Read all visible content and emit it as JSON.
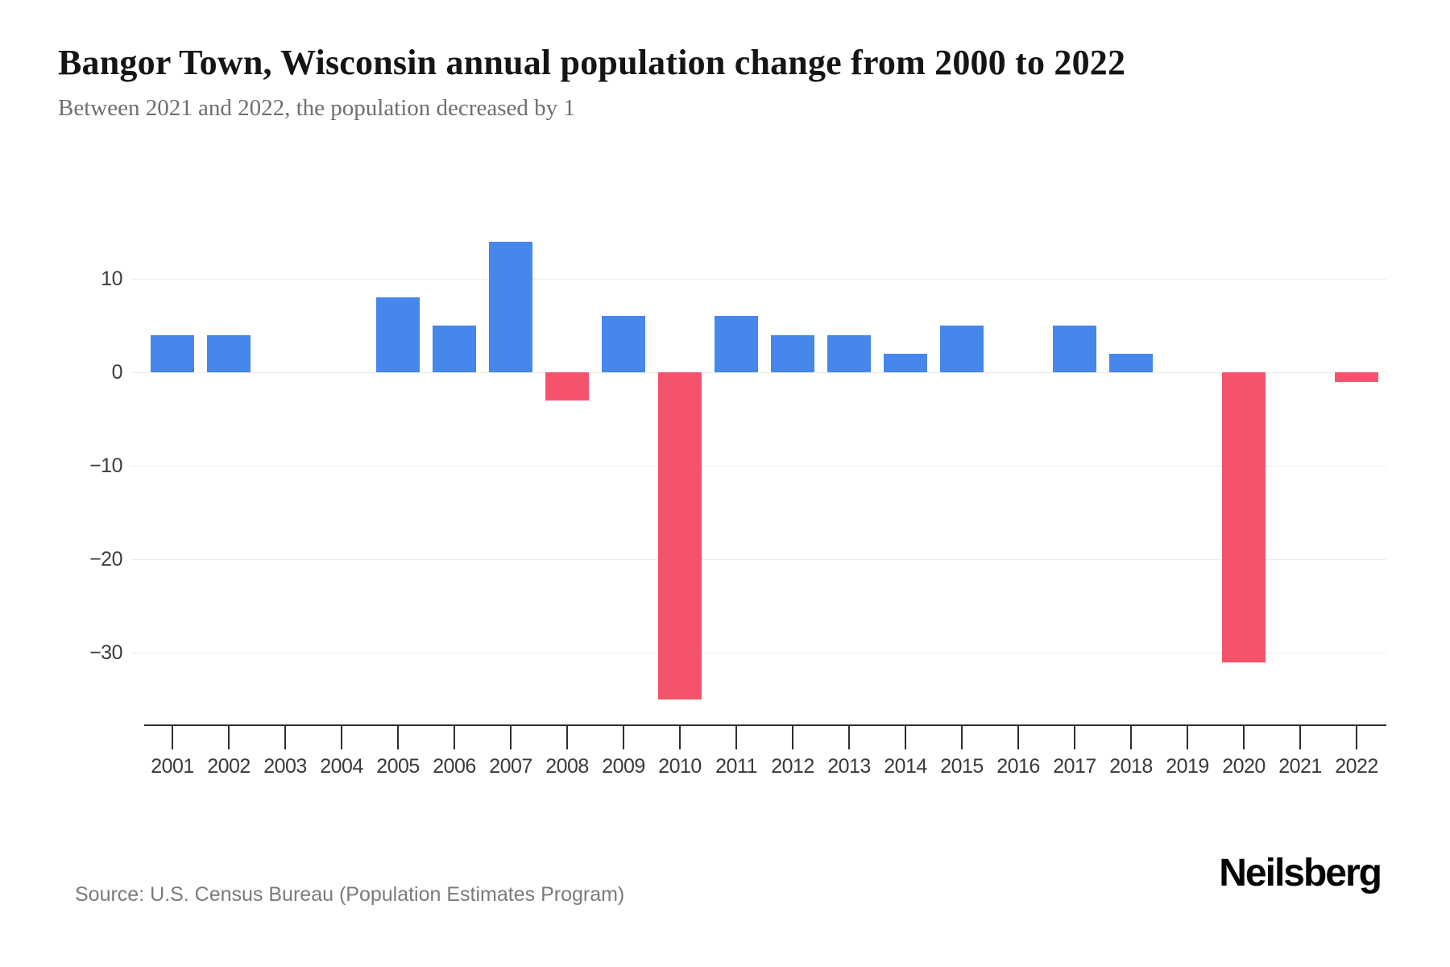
{
  "header": {
    "title": "Bangor Town, Wisconsin annual population change from 2000 to 2022",
    "subtitle": "Between 2021 and 2022, the population decreased by 1"
  },
  "chart_data": {
    "type": "bar",
    "title": "Bangor Town, Wisconsin annual population change from 2000 to 2022",
    "categories": [
      "2001",
      "2002",
      "2003",
      "2004",
      "2005",
      "2006",
      "2007",
      "2008",
      "2009",
      "2010",
      "2011",
      "2012",
      "2013",
      "2014",
      "2015",
      "2016",
      "2017",
      "2018",
      "2019",
      "2020",
      "2021",
      "2022"
    ],
    "values": [
      4,
      4,
      0,
      0,
      8,
      5,
      14,
      -3,
      6,
      -35,
      6,
      4,
      4,
      2,
      5,
      0,
      5,
      2,
      0,
      -31,
      0,
      -1
    ],
    "xlabel": "",
    "ylabel": "",
    "yticks": [
      10,
      0,
      -10,
      -20,
      -30
    ],
    "ytick_labels": [
      "10",
      "0",
      "−10",
      "−20",
      "−30"
    ],
    "ylim": [
      -36,
      15
    ],
    "grid": true,
    "legend": "none",
    "colors": {
      "positive": "#4687ec",
      "negative": "#f5536c"
    }
  },
  "footer": {
    "source": "Source: U.S. Census Bureau (Population Estimates Program)",
    "brand": "Neilsberg"
  }
}
